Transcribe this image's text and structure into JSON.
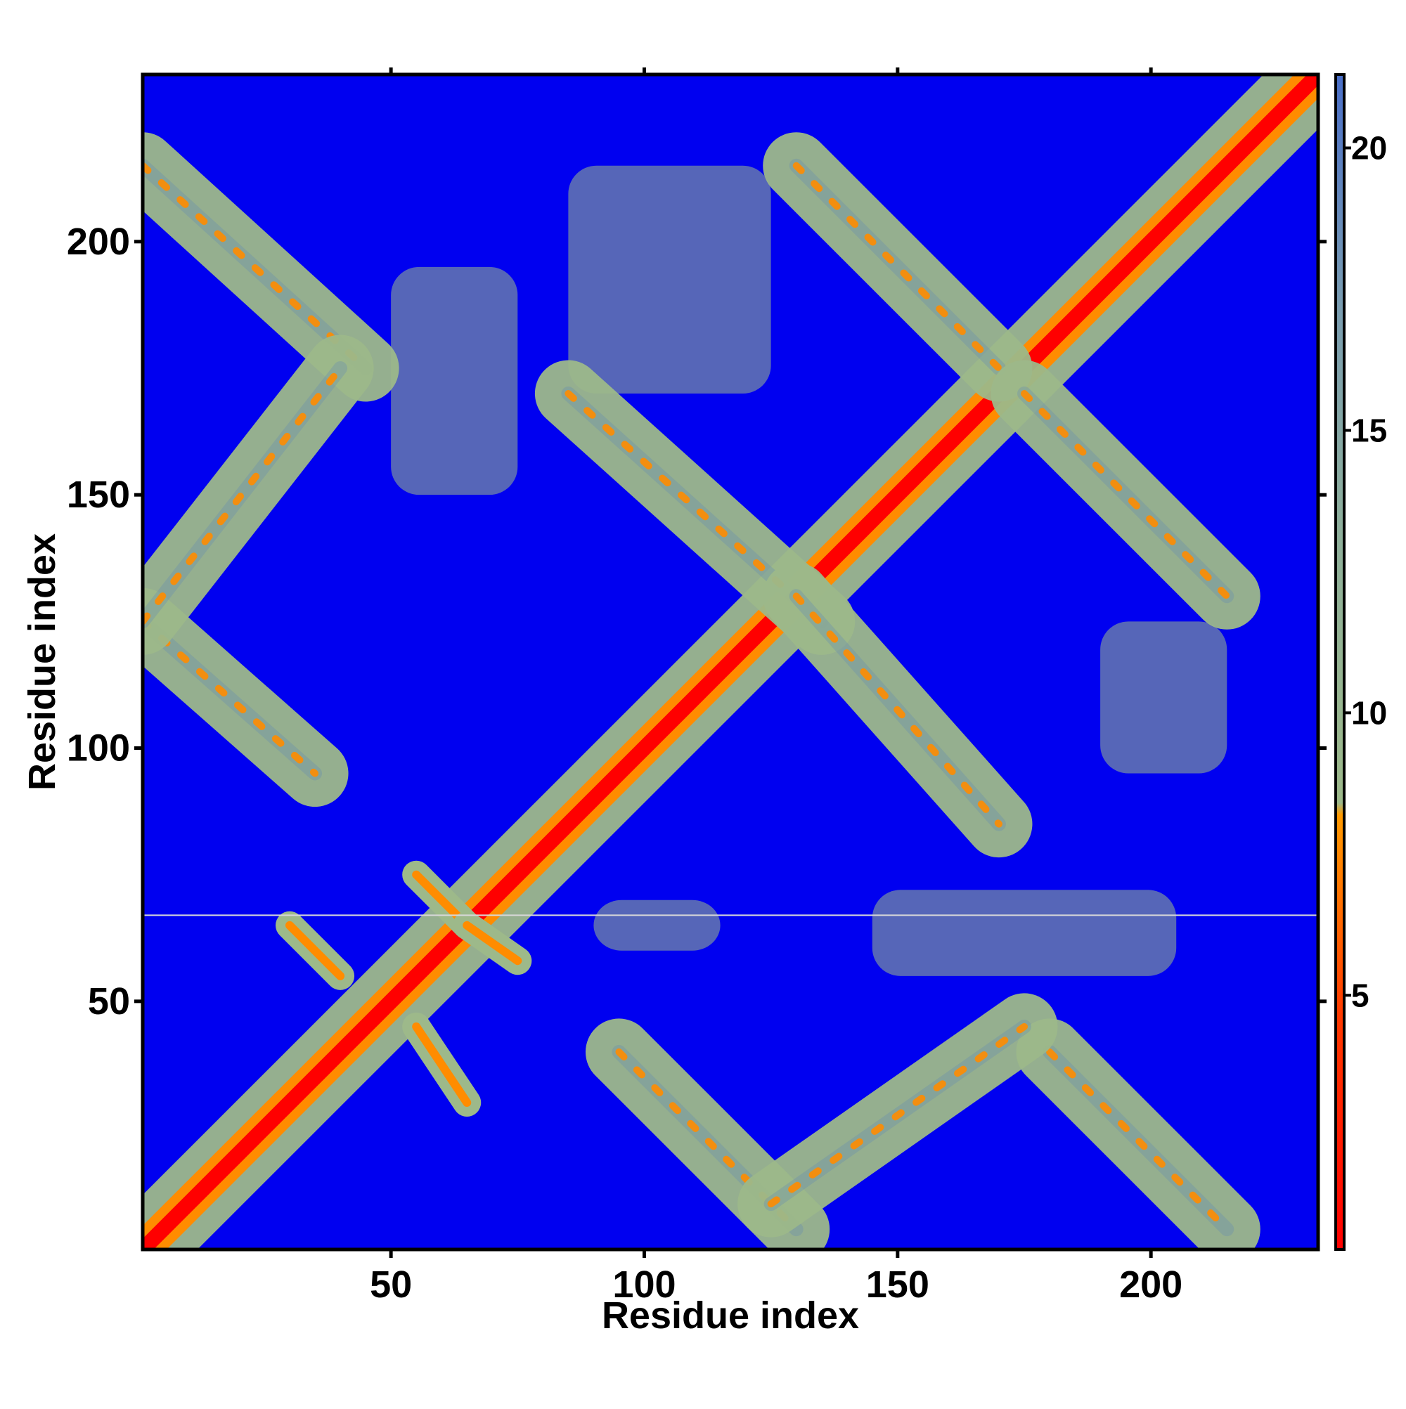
{
  "chart_data": {
    "type": "heatmap",
    "title": "",
    "xlabel": "Residue index",
    "ylabel": "Residue index",
    "xlim": [
      1,
      233
    ],
    "ylim": [
      1,
      233
    ],
    "x_ticks": [
      50,
      100,
      150,
      200
    ],
    "y_ticks": [
      50,
      100,
      150,
      200
    ],
    "x_tick_labels": [
      "50",
      "100",
      "150",
      "200"
    ],
    "y_tick_labels": [
      "50",
      "100",
      "150",
      "200"
    ],
    "colorbar": {
      "range": [
        0.5,
        21.3
      ],
      "ticks": [
        5,
        10,
        15,
        20
      ],
      "tick_labels": [
        "5",
        "10",
        "15",
        "20"
      ]
    },
    "colors": {
      "background": "#0000f0",
      "near": "#ff0000",
      "mid_near": "#ff8c00",
      "mid": "#9db98a",
      "far": "#6a8fb0"
    },
    "legend": "colorbar-right",
    "grid": false,
    "features": [
      {
        "name": "main diagonal",
        "x": [
          1,
          233
        ],
        "y": [
          1,
          233
        ]
      },
      {
        "name": "anti-diagonal band",
        "x": [
          1,
          45
        ],
        "y": [
          215,
          175
        ]
      },
      {
        "name": "anti-diagonal band",
        "x": [
          85,
          135
        ],
        "y": [
          170,
          125
        ]
      },
      {
        "name": "anti-diagonal band",
        "x": [
          130,
          170
        ],
        "y": [
          130,
          85
        ]
      },
      {
        "name": "anti-diagonal band",
        "x": [
          130,
          170
        ],
        "y": [
          215,
          175
        ]
      },
      {
        "name": "anti-diagonal band",
        "x": [
          175,
          215
        ],
        "y": [
          170,
          130
        ]
      },
      {
        "name": "anti-diagonal band",
        "x": [
          180,
          215
        ],
        "y": [
          40,
          5
        ]
      },
      {
        "name": "anti-diagonal band",
        "x": [
          95,
          130
        ],
        "y": [
          40,
          5
        ]
      },
      {
        "name": "diagonal band",
        "x": [
          125,
          175
        ],
        "y": [
          10,
          45
        ]
      },
      {
        "name": "anti-diagonal band",
        "x": [
          1,
          35
        ],
        "y": [
          125,
          95
        ]
      },
      {
        "name": "diagonal band",
        "x": [
          1,
          40
        ],
        "y": [
          125,
          175
        ]
      },
      {
        "name": "cross contact",
        "x": [
          30,
          40
        ],
        "y": [
          65,
          55
        ]
      },
      {
        "name": "cross contact",
        "x": [
          55,
          65
        ],
        "y": [
          75,
          65
        ]
      },
      {
        "name": "cross contact",
        "x": [
          65,
          75
        ],
        "y": [
          65,
          58
        ]
      },
      {
        "name": "cross contact",
        "x": [
          55,
          65
        ],
        "y": [
          45,
          30
        ]
      },
      {
        "name": "sparse patch",
        "x": [
          50,
          75
        ],
        "y": [
          150,
          195
        ]
      },
      {
        "name": "sparse patch",
        "x": [
          85,
          125
        ],
        "y": [
          170,
          215
        ]
      },
      {
        "name": "sparse patch",
        "x": [
          190,
          215
        ],
        "y": [
          95,
          125
        ]
      },
      {
        "name": "sparse patch",
        "x": [
          90,
          115
        ],
        "y": [
          60,
          70
        ]
      },
      {
        "name": "sparse patch",
        "x": [
          145,
          205
        ],
        "y": [
          55,
          72
        ]
      }
    ]
  }
}
